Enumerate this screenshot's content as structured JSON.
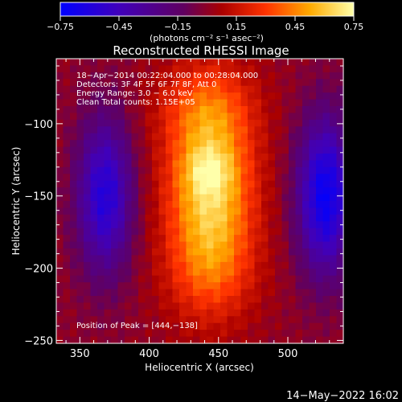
{
  "chart_data": {
    "type": "heatmap",
    "title": "Reconstructed RHESSI Image",
    "xlabel": "Heliocentric X (arcsec)",
    "ylabel": "Heliocentric Y (arcsec)",
    "xlim": [
      333,
      540
    ],
    "ylim": [
      -252,
      -55
    ],
    "x_ticks": [
      350,
      400,
      450,
      500
    ],
    "y_ticks": [
      -100,
      -150,
      -200,
      -250
    ],
    "colorbar": {
      "range": [
        -0.75,
        0.75
      ],
      "tick_values": [
        -0.75,
        -0.45,
        -0.15,
        0.15,
        0.45,
        0.75
      ],
      "tick_labels": [
        "−0.75",
        "−0.45",
        "−0.15",
        "0.15",
        "0.45",
        "0.75"
      ],
      "unit_label": "(photons cm⁻² s⁻¹ asec⁻²)"
    },
    "peak": [
      444,
      -138
    ],
    "annotations": [
      "18−Apr−2014 00:22:04.000 to 00:28:04.000",
      "Detectors: 3F 4F 5F 6F 7F 8F, Att 0",
      "Energy Range: 3.0 − 6.0 keV",
      "Clean     Total counts: 1.15E+05"
    ],
    "peak_label": "Position of Peak = [444,−138]",
    "components": [
      {
        "x": 444,
        "y": -148,
        "sx": 22,
        "sy": 48,
        "amp": 0.66
      },
      {
        "x": 443,
        "y": -132,
        "sx": 12,
        "sy": 11,
        "amp": 0.16
      },
      {
        "x": 440,
        "y": -88,
        "sx": 26,
        "sy": 20,
        "amp": 0.18
      },
      {
        "x": 444,
        "y": -205,
        "sx": 24,
        "sy": 22,
        "amp": 0.12
      },
      {
        "x": 368,
        "y": -150,
        "sx": 14,
        "sy": 38,
        "amp": -0.58
      },
      {
        "x": 527,
        "y": -150,
        "sx": 14,
        "sy": 38,
        "amp": -0.7
      }
    ]
  },
  "timestamp": "14−May−2022 16:02"
}
